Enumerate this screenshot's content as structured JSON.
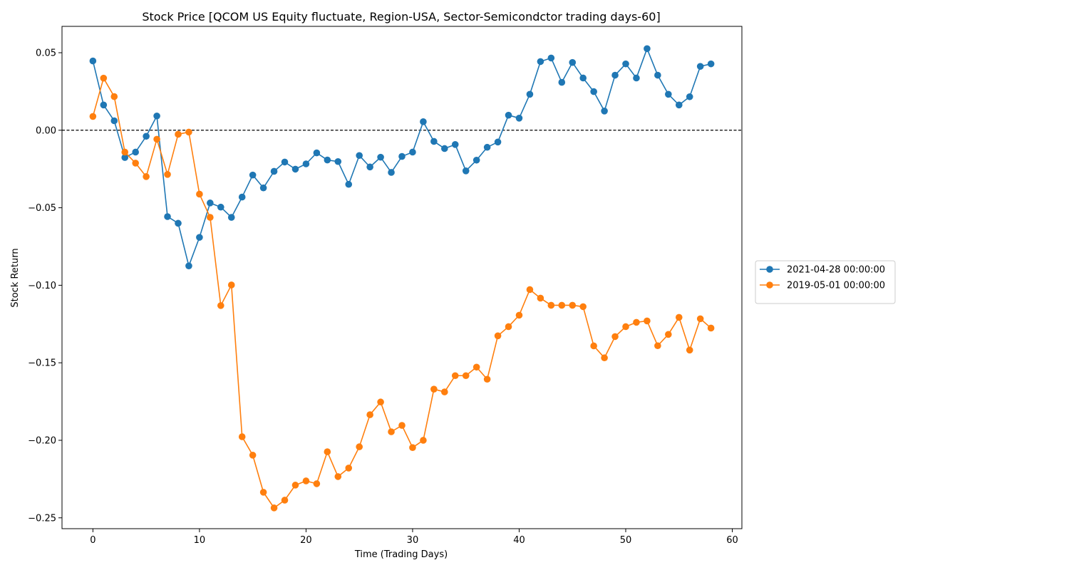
{
  "chart_data": {
    "type": "line",
    "title": "Stock Price [QCOM US Equity fluctuate, Region-USA, Sector-Semicondctor trading days-60]",
    "xlabel": "Time (Trading Days)",
    "ylabel": "Stock Return",
    "xlim": [
      -2.9,
      60.9
    ],
    "ylim": [
      -0.257,
      0.067
    ],
    "xticks": [
      0,
      10,
      20,
      30,
      40,
      50,
      60
    ],
    "xtick_labels": [
      "0",
      "10",
      "20",
      "30",
      "40",
      "50",
      "60"
    ],
    "yticks": [
      0.05,
      0.0,
      -0.05,
      -0.1,
      -0.15,
      -0.2,
      -0.25
    ],
    "ytick_labels": [
      "0.05",
      "0.00",
      "−0.05",
      "−0.10",
      "−0.15",
      "−0.20",
      "−0.25"
    ],
    "reference_line": {
      "y": 0.0,
      "style": "dashed",
      "color": "#000000"
    },
    "grid": false,
    "legend_position": "outside-right",
    "series": [
      {
        "name": "2021-04-28 00:00:00",
        "color": "#1f77b4",
        "x": [
          0,
          1,
          2,
          3,
          4,
          5,
          6,
          7,
          8,
          9,
          10,
          11,
          12,
          13,
          14,
          15,
          16,
          17,
          18,
          19,
          20,
          21,
          22,
          23,
          24,
          25,
          26,
          27,
          28,
          29,
          30,
          31,
          32,
          33,
          34,
          35,
          36,
          37,
          38,
          39,
          40,
          41,
          42,
          43,
          44,
          45,
          46,
          47,
          48,
          49,
          50,
          51,
          52,
          53,
          54,
          55,
          56,
          57,
          58
        ],
        "values": [
          0.0447,
          0.0163,
          0.0061,
          -0.0176,
          -0.0141,
          -0.0039,
          0.0092,
          -0.0557,
          -0.06,
          -0.0875,
          -0.0691,
          -0.0469,
          -0.0496,
          -0.0562,
          -0.0431,
          -0.0289,
          -0.0372,
          -0.0265,
          -0.0205,
          -0.0251,
          -0.0217,
          -0.0146,
          -0.0192,
          -0.0202,
          -0.0349,
          -0.0163,
          -0.0237,
          -0.0174,
          -0.0272,
          -0.0169,
          -0.0141,
          0.0055,
          -0.0072,
          -0.0118,
          -0.0092,
          -0.0262,
          -0.0193,
          -0.011,
          -0.0076,
          0.0097,
          0.0078,
          0.0232,
          0.0443,
          0.0466,
          0.0309,
          0.0437,
          0.0337,
          0.0249,
          0.0124,
          0.0355,
          0.0428,
          0.0337,
          0.0526,
          0.0355,
          0.0232,
          0.0163,
          0.0216,
          0.0412,
          0.0428
        ]
      },
      {
        "name": "2019-05-01 00:00:00",
        "color": "#ff7f0e",
        "x": [
          0,
          1,
          2,
          3,
          4,
          5,
          6,
          7,
          8,
          9,
          10,
          11,
          12,
          13,
          14,
          15,
          16,
          17,
          18,
          19,
          20,
          21,
          22,
          23,
          24,
          25,
          26,
          27,
          28,
          29,
          30,
          31,
          32,
          33,
          34,
          35,
          36,
          37,
          38,
          39,
          40,
          41,
          42,
          43,
          44,
          45,
          46,
          47,
          48,
          49,
          50,
          51,
          52,
          53,
          54,
          55,
          56,
          57,
          58
        ],
        "values": [
          0.0089,
          0.0336,
          0.0217,
          -0.0141,
          -0.0212,
          -0.0299,
          -0.0058,
          -0.0285,
          -0.0026,
          -0.0012,
          -0.0412,
          -0.0562,
          -0.1131,
          -0.0998,
          -0.1977,
          -0.2096,
          -0.2335,
          -0.2436,
          -0.2386,
          -0.2289,
          -0.2262,
          -0.228,
          -0.2074,
          -0.2234,
          -0.2179,
          -0.2042,
          -0.1835,
          -0.1753,
          -0.1945,
          -0.1904,
          -0.2047,
          -0.2,
          -0.167,
          -0.1688,
          -0.1583,
          -0.1583,
          -0.1528,
          -0.1606,
          -0.1326,
          -0.1267,
          -0.1193,
          -0.1028,
          -0.1083,
          -0.1129,
          -0.1129,
          -0.1129,
          -0.1138,
          -0.1391,
          -0.1468,
          -0.1331,
          -0.1267,
          -0.1239,
          -0.123,
          -0.139,
          -0.1317,
          -0.1207,
          -0.1418,
          -0.1216,
          -0.1276
        ]
      }
    ]
  }
}
